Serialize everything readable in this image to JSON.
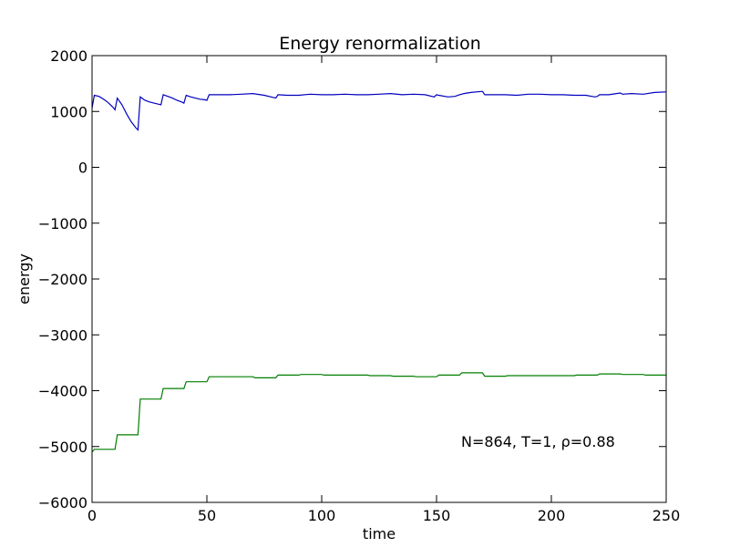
{
  "chart_data": {
    "type": "line",
    "title": "Energy renormalization",
    "xlabel": "time",
    "ylabel": "energy",
    "xlim": [
      0,
      250
    ],
    "ylim": [
      -6000,
      2000
    ],
    "xticks": [
      "0",
      "50",
      "100",
      "150",
      "200",
      "250"
    ],
    "yticks": [
      "2000",
      "1000",
      "0",
      "−1000",
      "−2000",
      "−3000",
      "−4000",
      "−5000",
      "−6000"
    ],
    "grid": false,
    "annotation": "N=864, T=1, ρ=0.88",
    "series": [
      {
        "color": "#0000bf",
        "x": [
          0,
          1,
          3,
          5,
          7,
          9,
          10,
          11,
          13,
          15,
          17,
          19,
          20,
          21,
          23,
          25,
          27,
          29,
          30,
          31,
          33,
          35,
          37,
          39,
          40,
          41,
          43,
          45,
          47,
          49,
          50,
          51,
          55,
          60,
          65,
          70,
          75,
          79,
          80,
          81,
          85,
          90,
          95,
          100,
          105,
          110,
          115,
          120,
          125,
          130,
          135,
          140,
          145,
          149,
          150,
          151,
          155,
          158,
          160,
          162,
          165,
          170,
          171,
          175,
          180,
          185,
          190,
          195,
          200,
          205,
          210,
          215,
          219,
          220,
          221,
          225,
          230,
          231,
          235,
          240,
          245,
          250
        ],
        "y": [
          1060,
          1290,
          1270,
          1220,
          1160,
          1080,
          1030,
          1240,
          1120,
          960,
          820,
          710,
          670,
          1260,
          1200,
          1170,
          1150,
          1130,
          1120,
          1300,
          1270,
          1240,
          1200,
          1170,
          1150,
          1290,
          1260,
          1240,
          1220,
          1210,
          1200,
          1300,
          1300,
          1300,
          1310,
          1320,
          1290,
          1250,
          1240,
          1300,
          1290,
          1290,
          1310,
          1300,
          1300,
          1310,
          1300,
          1300,
          1310,
          1320,
          1300,
          1310,
          1300,
          1260,
          1300,
          1290,
          1260,
          1270,
          1300,
          1320,
          1340,
          1360,
          1300,
          1300,
          1300,
          1290,
          1310,
          1310,
          1300,
          1300,
          1290,
          1290,
          1260,
          1270,
          1300,
          1300,
          1330,
          1310,
          1320,
          1310,
          1340,
          1350
        ]
      },
      {
        "color": "#007f00",
        "x": [
          0,
          1,
          10,
          11,
          20,
          21,
          30,
          31,
          40,
          41,
          50,
          51,
          60,
          61,
          70,
          71,
          80,
          81,
          90,
          91,
          100,
          101,
          110,
          111,
          120,
          121,
          130,
          131,
          140,
          141,
          150,
          151,
          160,
          161,
          170,
          171,
          180,
          181,
          190,
          191,
          200,
          201,
          210,
          211,
          220,
          221,
          230,
          231,
          240,
          241,
          250
        ],
        "y": [
          -5100,
          -5050,
          -5050,
          -4790,
          -4790,
          -4150,
          -4150,
          -3960,
          -3960,
          -3840,
          -3840,
          -3750,
          -3750,
          -3750,
          -3750,
          -3770,
          -3770,
          -3720,
          -3720,
          -3710,
          -3710,
          -3720,
          -3720,
          -3720,
          -3720,
          -3730,
          -3730,
          -3740,
          -3740,
          -3750,
          -3750,
          -3720,
          -3720,
          -3680,
          -3680,
          -3740,
          -3740,
          -3730,
          -3730,
          -3730,
          -3730,
          -3730,
          -3730,
          -3720,
          -3720,
          -3700,
          -3700,
          -3710,
          -3710,
          -3720,
          -3720
        ]
      }
    ]
  }
}
